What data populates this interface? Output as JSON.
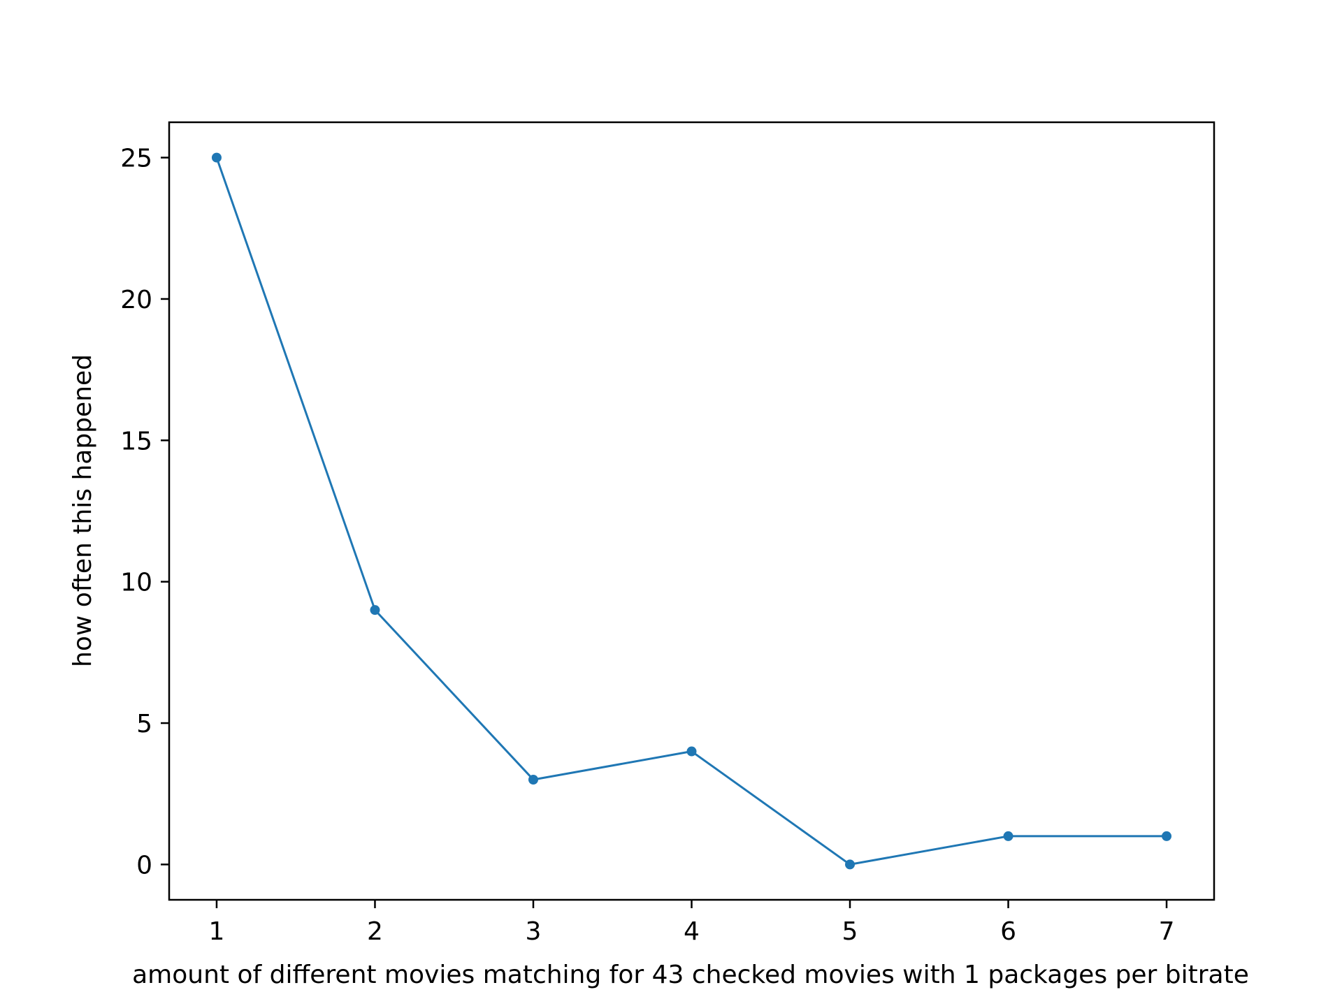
{
  "chart_data": {
    "type": "line",
    "title": "",
    "xlabel": "amount of different movies matching for 43 checked movies with 1 packages per bitrate",
    "ylabel": "how often this happened",
    "x": [
      1,
      2,
      3,
      4,
      5,
      6,
      7
    ],
    "series": [
      {
        "values": [
          25,
          9,
          3,
          4,
          0,
          1,
          1
        ],
        "color": "#1f77b4",
        "marker": "circle"
      }
    ],
    "xticks": [
      1,
      2,
      3,
      4,
      5,
      6,
      7
    ],
    "yticks": [
      0,
      5,
      10,
      15,
      20,
      25
    ],
    "xlim": [
      0.7,
      7.3
    ],
    "ylim": [
      -1.25,
      26.25
    ],
    "grid": false,
    "legend": "none"
  }
}
